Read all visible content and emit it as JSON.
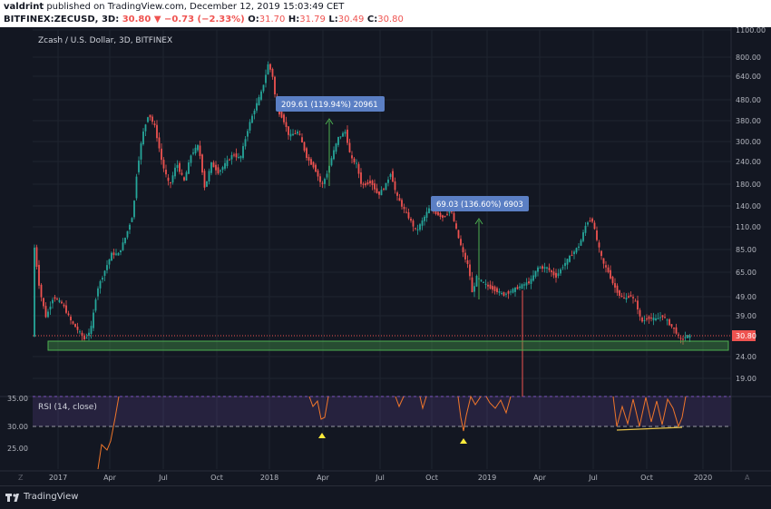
{
  "header": {
    "author": "valdrint",
    "published_text": "published on TradingView.com, December 12, 2019 15:03:49 CET",
    "symbol": "BITFINEX:ZECUSD, 3D",
    "last": "30.80",
    "change": "▼ −0.73 (−2.33%)",
    "o_label": "O:",
    "o": "31.70",
    "h_label": "H:",
    "h": "31.79",
    "l_label": "L:",
    "l": "30.49",
    "c_label": "C:",
    "c": "30.80"
  },
  "chart": {
    "legend": "Zcash / U.S. Dollar, 3D, BITFINEX",
    "price_ticks": [
      "1100.00",
      "800.00",
      "640.00",
      "480.00",
      "380.00",
      "300.00",
      "240.00",
      "180.00",
      "140.00",
      "110.00",
      "85.00",
      "65.00",
      "49.00",
      "39.00",
      "24.00",
      "19.00"
    ],
    "last_price_label": "30.80",
    "last_price_color": "#ef5350",
    "support_color": "#4caf50",
    "measure1_text": "209.61 (119.94%) 20961",
    "measure2_text": "69.03 (136.60%) 6903",
    "time_ticks": [
      "2017",
      "Apr",
      "Jul",
      "Oct",
      "2018",
      "Apr",
      "Jul",
      "Oct",
      "2019",
      "Apr",
      "Jul",
      "Oct",
      "2020"
    ],
    "corner_left": "Z",
    "corner_right": "A"
  },
  "rsi": {
    "legend": "RSI (14, close)",
    "ticks": [
      "35.00",
      "30.00",
      "25.00"
    ],
    "line_color": "#f0762b",
    "band_color": "#7e57c2"
  },
  "footer": {
    "brand": "TradingView"
  }
}
